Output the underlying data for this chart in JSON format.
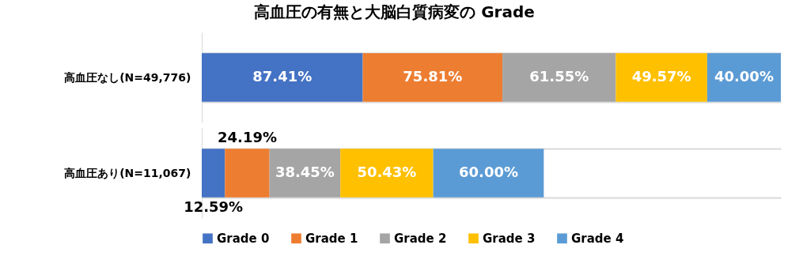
{
  "chart_data": {
    "type": "bar",
    "orientation": "horizontal",
    "stacked": true,
    "title": "高血圧の有無と大脳白質病変の Grade",
    "categories": [
      "高血圧なし(N=49,776)",
      "高血圧あり(N=11,067)"
    ],
    "series": [
      {
        "name": "Grade 0",
        "color": "#4472c4",
        "values": [
          87.41,
          12.59
        ],
        "value_labels": [
          "87.41%",
          "12.59%"
        ]
      },
      {
        "name": "Grade 1",
        "color": "#ed7d31",
        "values": [
          75.81,
          24.19
        ],
        "value_labels": [
          "75.81%",
          "24.19%"
        ]
      },
      {
        "name": "Grade 2",
        "color": "#a5a5a5",
        "values": [
          61.55,
          38.45
        ],
        "value_labels": [
          "61.55%",
          "38.45%"
        ]
      },
      {
        "name": "Grade 3",
        "color": "#ffc000",
        "values": [
          49.57,
          50.43
        ],
        "value_labels": [
          "49.57%",
          "50.43%"
        ]
      },
      {
        "name": "Grade 4",
        "color": "#5b9bd5",
        "values": [
          40.0,
          60.0
        ],
        "value_labels": [
          "40.00%",
          "60.00%"
        ]
      }
    ],
    "grid": "y",
    "legend": "bottom"
  }
}
